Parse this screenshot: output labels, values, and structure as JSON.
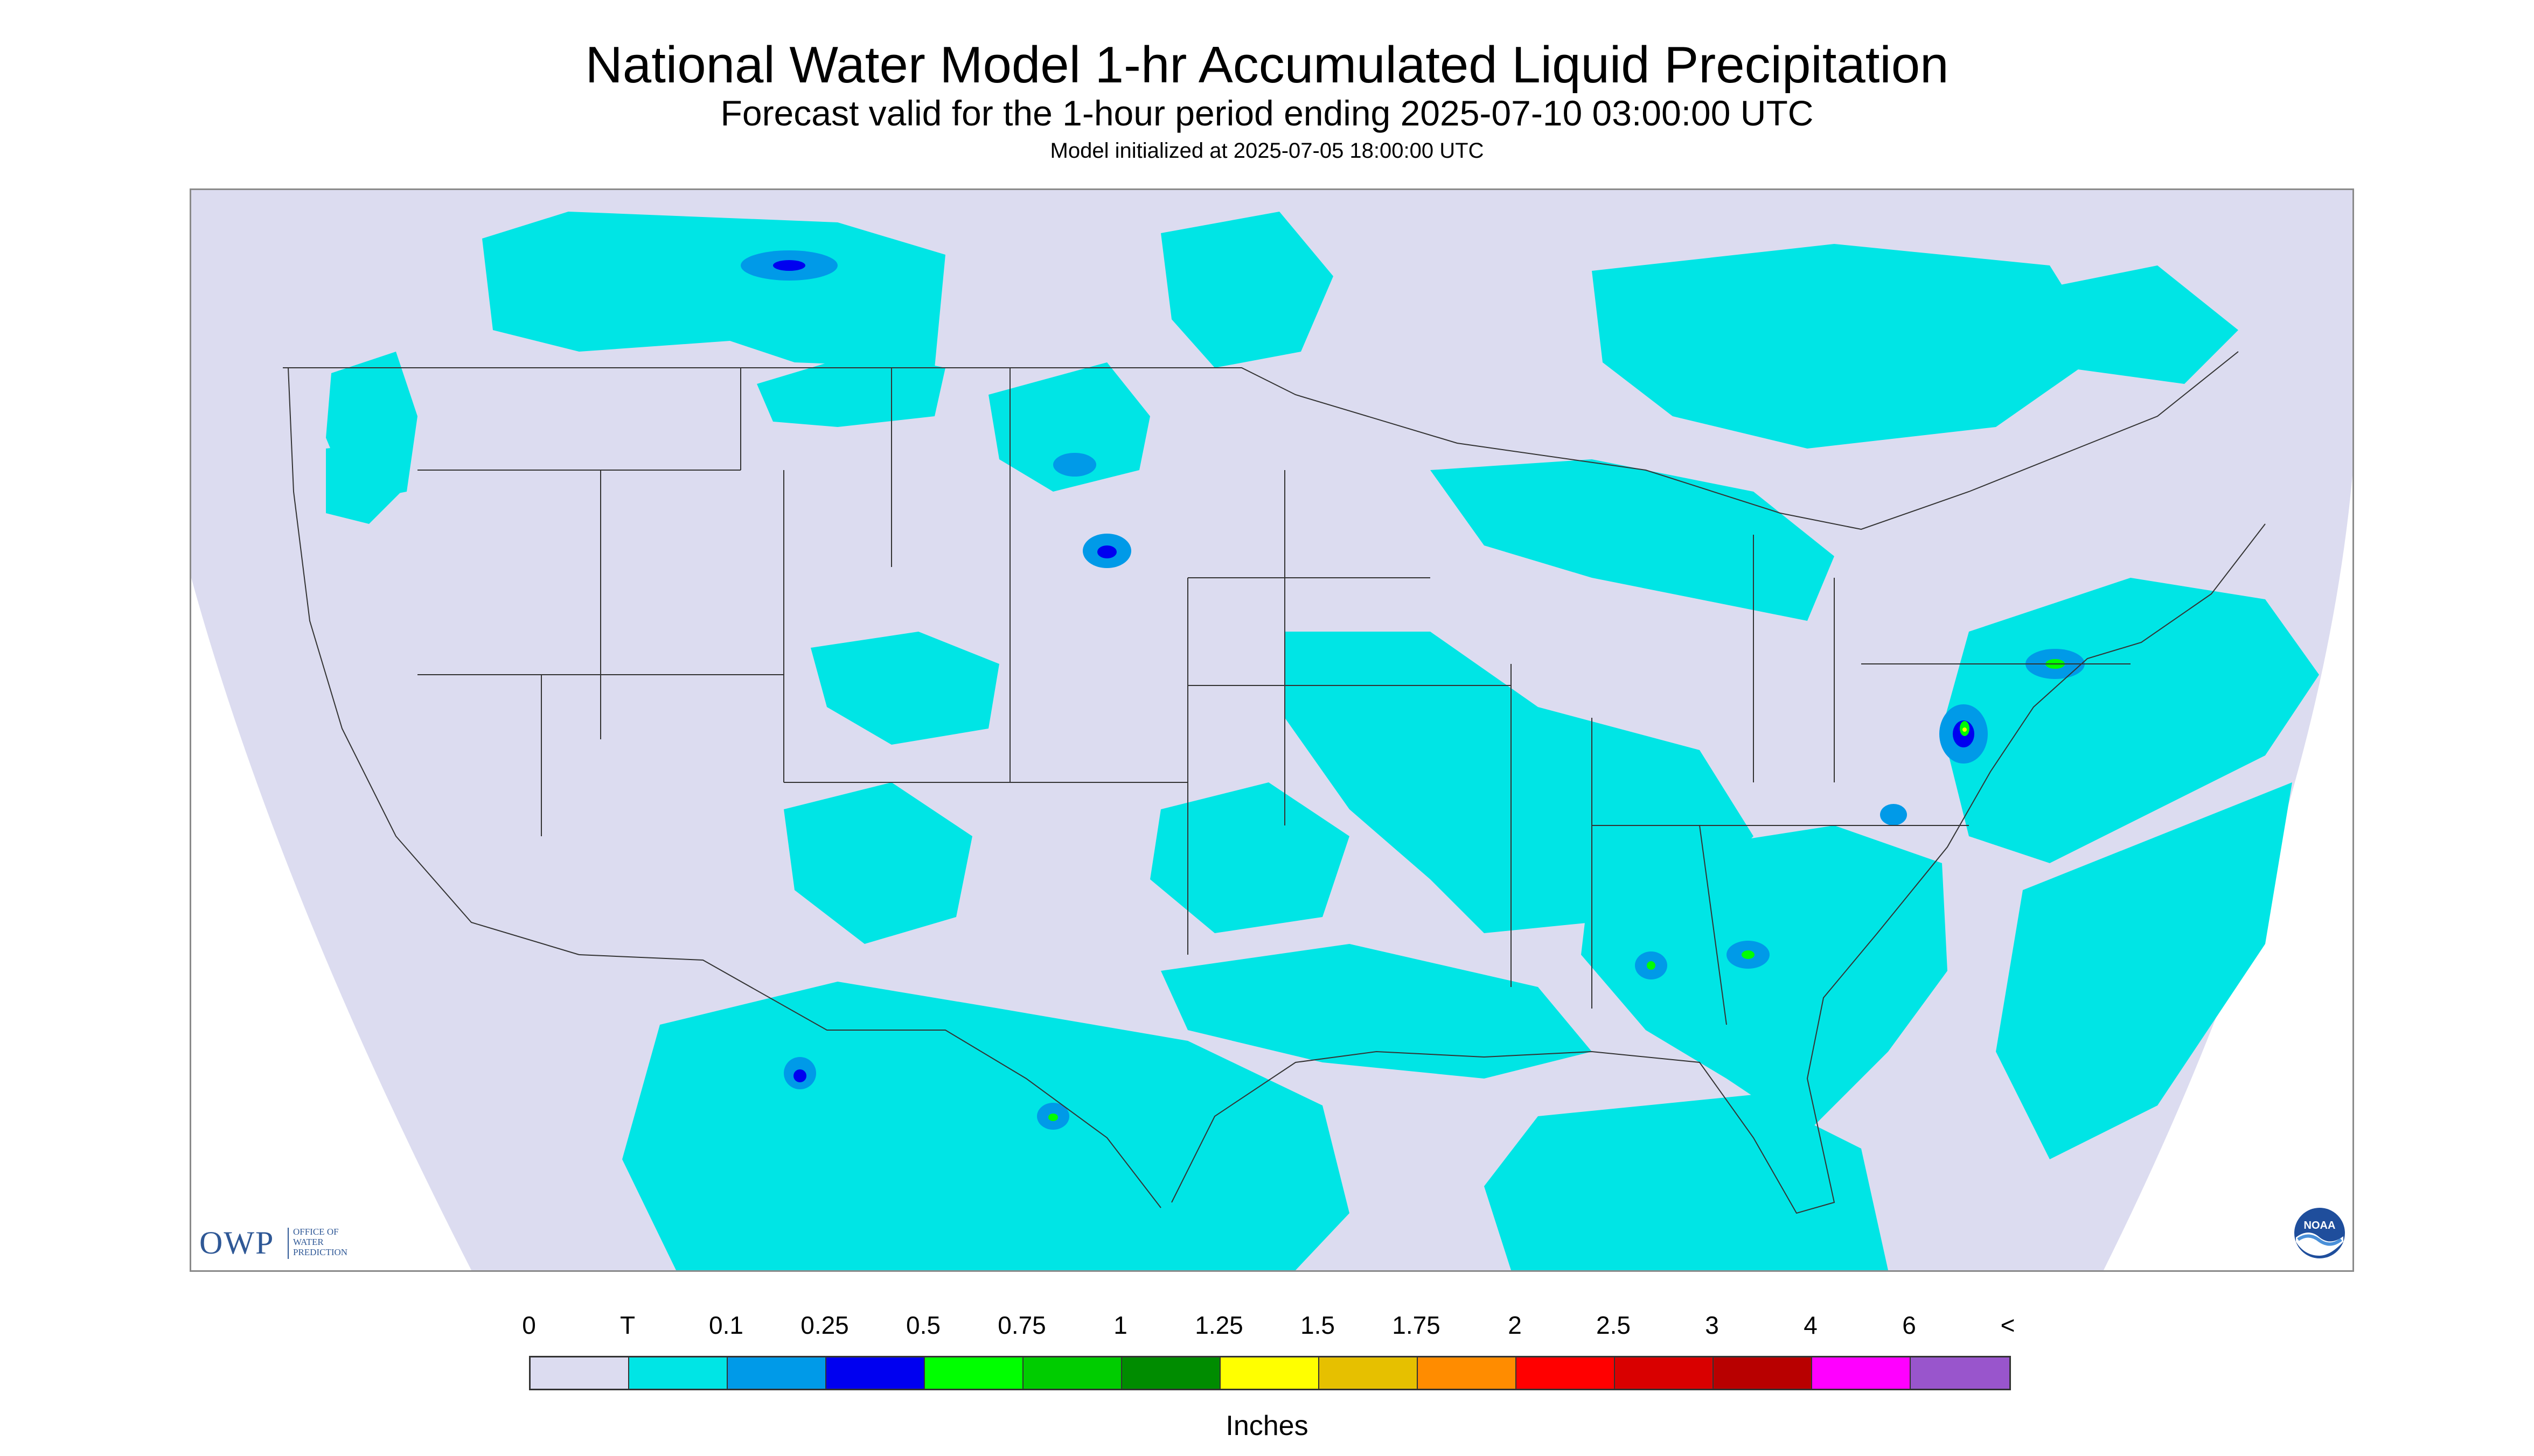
{
  "title": "National Water Model 1-hr Accumulated Liquid Precipitation",
  "subtitle": "Forecast valid for the 1-hour period ending 2025-07-10 03:00:00 UTC",
  "init_line": "Model initialized at 2025-07-05 18:00:00 UTC",
  "logo_owp": {
    "letters": "OWP",
    "line1": "OFFICE OF",
    "line2": "WATER",
    "line3": "PREDICTION"
  },
  "logo_noaa": {
    "text": "NOAA"
  },
  "legend": {
    "units": "Inches",
    "ticks": [
      "0",
      "T",
      "0.1",
      "0.25",
      "0.5",
      "0.75",
      "1",
      "1.25",
      "1.5",
      "1.75",
      "2",
      "2.5",
      "3",
      "4",
      "6",
      "<"
    ],
    "colors": [
      "#dcdcf0",
      "#00e5e5",
      "#009ae8",
      "#0000f0",
      "#00ff00",
      "#00cc00",
      "#008c00",
      "#ffff00",
      "#e6c000",
      "#ff8c00",
      "#ff0000",
      "#d90000",
      "#b80000",
      "#ff00ff",
      "#9955cc"
    ]
  },
  "colors": {
    "background_no_data": "#ffffff",
    "domain_fill": "#dcdcf0",
    "trace": "#00e5e5",
    "light": "#009ae8",
    "moderate": "#0000f0",
    "heavy": "#00ff00",
    "very_heavy": "#ffff00",
    "boundaries": "#333333"
  }
}
